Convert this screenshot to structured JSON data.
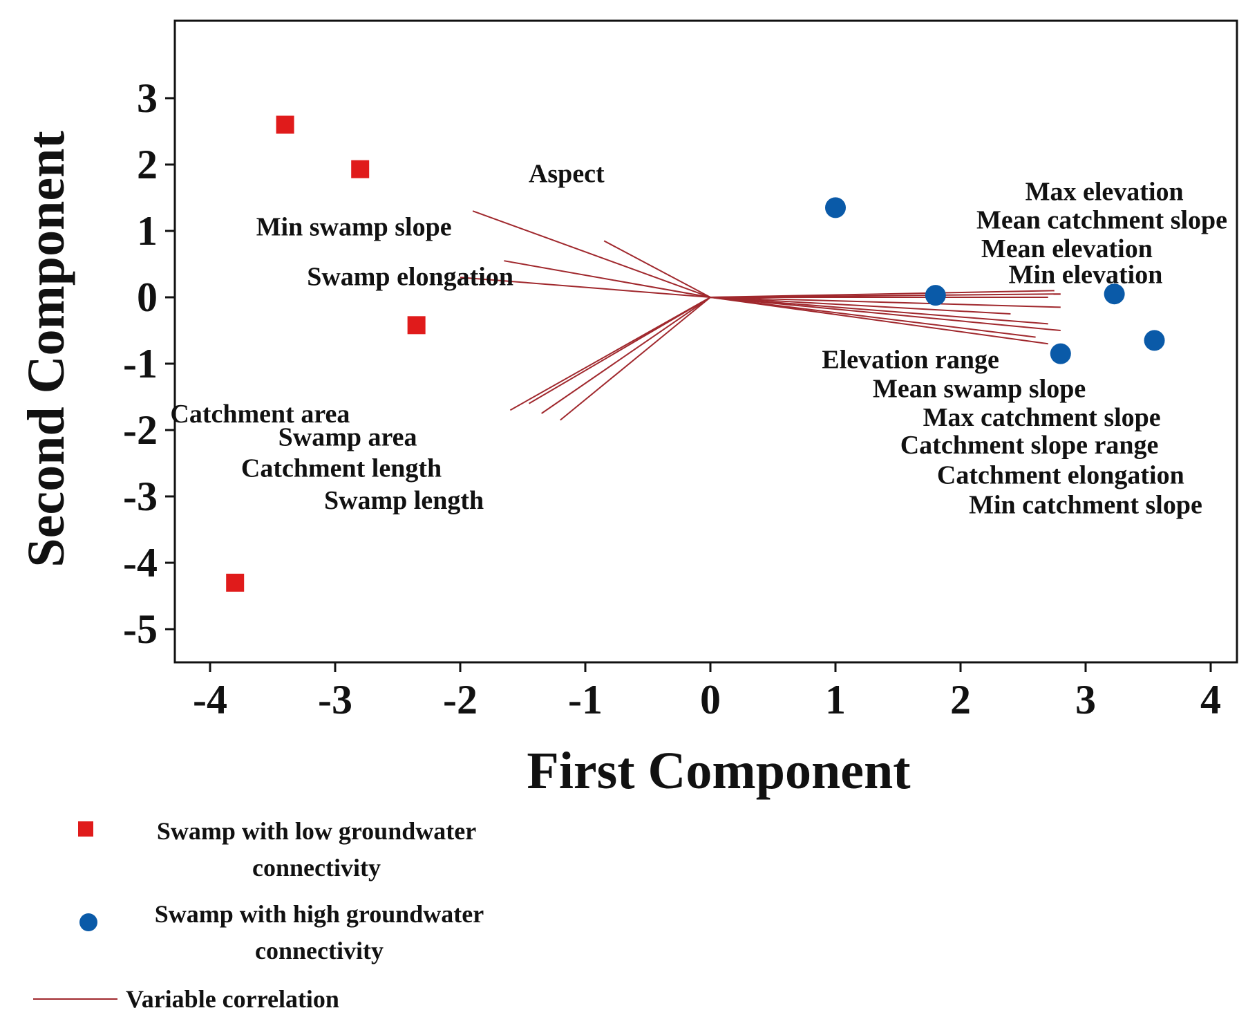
{
  "chart_data": {
    "type": "scatter",
    "title": "",
    "xlabel": "First Component",
    "ylabel": "Second Component",
    "xlim": [
      -4.25,
      4.2
    ],
    "ylim": [
      -5.4,
      4.2
    ],
    "x_ticks": [
      "-4",
      "-3",
      "-2",
      "-1",
      "0",
      "1",
      "2",
      "3",
      "4"
    ],
    "y_ticks": [
      "3",
      "2",
      "1",
      "0",
      "-1",
      "-2",
      "-3",
      "-4",
      "-5"
    ],
    "series": [
      {
        "name": "Swamp with low groundwater connectivity",
        "marker": "square",
        "color": "#e01b1b",
        "points": [
          {
            "x": -3.4,
            "y": 2.6
          },
          {
            "x": -2.8,
            "y": 1.93
          },
          {
            "x": -2.35,
            "y": -0.42
          },
          {
            "x": -3.8,
            "y": -4.3
          }
        ]
      },
      {
        "name": "Swamp with high groundwater connectivity",
        "marker": "circle",
        "color": "#0a5aa8",
        "points": [
          {
            "x": 1.0,
            "y": 1.35
          },
          {
            "x": 1.8,
            "y": 0.03
          },
          {
            "x": 3.23,
            "y": 0.05
          },
          {
            "x": 2.8,
            "y": -0.85
          },
          {
            "x": 3.55,
            "y": -0.65
          }
        ]
      }
    ],
    "vectors": {
      "name": "Variable correlation",
      "color": "#a0282d",
      "lines": [
        {
          "x": -1.9,
          "y": 1.3
        },
        {
          "x": -0.85,
          "y": 0.85
        },
        {
          "x": -1.65,
          "y": 0.55
        },
        {
          "x": -2.0,
          "y": 0.3
        },
        {
          "x": -1.6,
          "y": -1.7
        },
        {
          "x": -1.45,
          "y": -1.6
        },
        {
          "x": -1.35,
          "y": -1.75
        },
        {
          "x": -1.2,
          "y": -1.85
        },
        {
          "x": 2.75,
          "y": 0.1
        },
        {
          "x": 2.8,
          "y": 0.05
        },
        {
          "x": 2.7,
          "y": 0.0
        },
        {
          "x": 2.8,
          "y": -0.15
        },
        {
          "x": 2.4,
          "y": -0.25
        },
        {
          "x": 2.7,
          "y": -0.4
        },
        {
          "x": 2.8,
          "y": -0.5
        },
        {
          "x": 2.6,
          "y": -0.6
        },
        {
          "x": 2.7,
          "y": -0.7
        }
      ]
    },
    "labels": [
      {
        "text": "Aspect",
        "x": -1.15,
        "y": 1.87
      },
      {
        "text": "Min swamp slope",
        "x": -2.85,
        "y": 1.07
      },
      {
        "text": "Swamp elongation",
        "x": -2.4,
        "y": 0.32
      },
      {
        "text": "Catchment area",
        "x": -3.6,
        "y": -1.75
      },
      {
        "text": "Swamp area",
        "x": -2.9,
        "y": -2.1
      },
      {
        "text": "Catchment length",
        "x": -2.95,
        "y": -2.57
      },
      {
        "text": "Swamp length",
        "x": -2.45,
        "y": -3.05
      },
      {
        "text": "Max elevation",
        "x": 3.15,
        "y": 1.6
      },
      {
        "text": "Mean catchment slope",
        "x": 3.13,
        "y": 1.17
      },
      {
        "text": "Mean elevation",
        "x": 2.85,
        "y": 0.74
      },
      {
        "text": "Min elevation",
        "x": 3.0,
        "y": 0.35
      },
      {
        "text": "Elevation range",
        "x": 1.6,
        "y": -0.93
      },
      {
        "text": "Mean swamp slope",
        "x": 2.15,
        "y": -1.37
      },
      {
        "text": "Max catchment slope",
        "x": 2.65,
        "y": -1.8
      },
      {
        "text": "Catchment slope range",
        "x": 2.55,
        "y": -2.22
      },
      {
        "text": "Catchment elongation",
        "x": 2.8,
        "y": -2.67
      },
      {
        "text": "Min catchment slope",
        "x": 3.0,
        "y": -3.12
      }
    ],
    "legend": {
      "position": "bottom-left",
      "entries": [
        {
          "marker": "square",
          "line1": "Swamp with low groundwater",
          "line2": "connectivity"
        },
        {
          "marker": "circle",
          "line1": "Swamp with high groundwater",
          "line2": "connectivity"
        },
        {
          "marker": "line",
          "line1": "Variable correlation",
          "line2": ""
        }
      ]
    }
  }
}
